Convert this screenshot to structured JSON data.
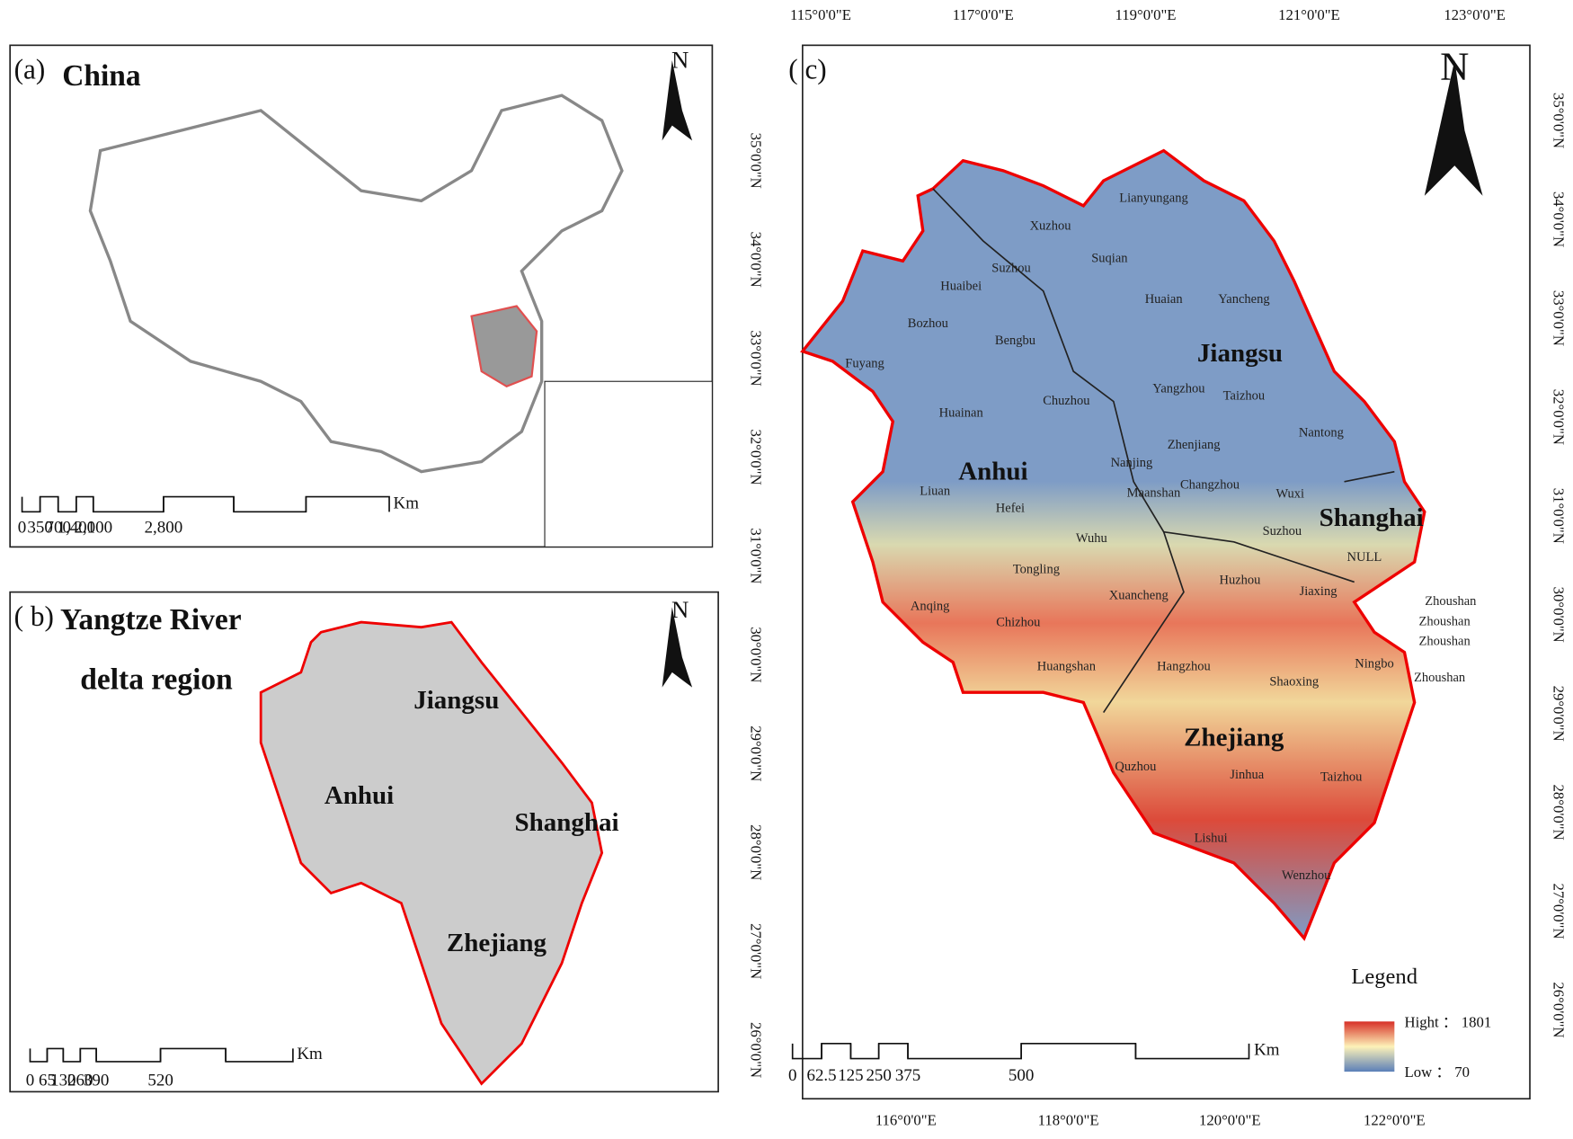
{
  "panel_a": {
    "label": "(a)",
    "title": "China",
    "north": "N",
    "scale_unit": "Km",
    "scale_ticks": [
      "0",
      "350",
      "700",
      "1,400",
      "2,100",
      "2,800"
    ]
  },
  "panel_b": {
    "label": "( b)",
    "title_lines": [
      "Yangtze River",
      "delta region"
    ],
    "north": "N",
    "provinces": [
      "Jiangsu",
      "Anhui",
      "Shanghai",
      "Zhejiang"
    ],
    "scale_unit": "Km",
    "scale_ticks": [
      "0",
      "65",
      "130",
      "260",
      "390",
      "520"
    ]
  },
  "panel_c": {
    "label": "( c)",
    "north": "N",
    "top_ticks": [
      "115°0'0\"E",
      "117°0'0\"E",
      "119°0'0\"E",
      "121°0'0\"E",
      "123°0'0\"E"
    ],
    "bottom_ticks": [
      "116°0'0\"E",
      "118°0'0\"E",
      "120°0'0\"E",
      "122°0'0\"E"
    ],
    "left_ticks": [
      "35°0'0\"N",
      "34°0'0\"N",
      "33°0'0\"N",
      "32°0'0\"N",
      "31°0'0\"N",
      "30°0'0\"N",
      "29°0'0\"N",
      "28°0'0\"N",
      "27°0'0\"N",
      "26°0'0\"N"
    ],
    "right_ticks": [
      "35°0'0\"N",
      "34°0'0\"N",
      "33°0'0\"N",
      "32°0'0\"N",
      "31°0'0\"N",
      "30°0'0\"N",
      "29°0'0\"N",
      "28°0'0\"N",
      "27°0'0\"N",
      "26°0'0\"N"
    ],
    "provinces": [
      "Jiangsu",
      "Anhui",
      "Shanghai",
      "Zhejiang"
    ],
    "cities": [
      "Lianyungang",
      "Xuzhou",
      "Suqian",
      "Suzhou",
      "Huaibei",
      "Huaian",
      "Yancheng",
      "Bozhou",
      "Bengbu",
      "Fuyang",
      "Yangzhou",
      "Taizhou",
      "Chuzhou",
      "Huainan",
      "Nantong",
      "Zhenjiang",
      "Nanjing",
      "Changzhou",
      "Wuxi",
      "Liuan",
      "Maanshan",
      "Hefei",
      "Suzhou",
      "Wuhu",
      "NULL",
      "Tongling",
      "Huzhou",
      "Jiaxing",
      "Xuancheng",
      "Anqing",
      "Chizhou",
      "Zhoushan",
      "Zhoushan",
      "Zhoushan",
      "Huangshan",
      "Hangzhou",
      "Ningbo",
      "Shaoxing",
      "Zhoushan",
      "Quzhou",
      "Jinhua",
      "Taizhou",
      "Lishui",
      "Wenzhou"
    ],
    "legend": {
      "title": "Legend",
      "high": "Hight ： 1801",
      "low": "Low ：  70"
    },
    "scale_unit": "Km",
    "scale_ticks": [
      "0",
      "62.5",
      "125",
      "250",
      "375",
      "500"
    ]
  }
}
